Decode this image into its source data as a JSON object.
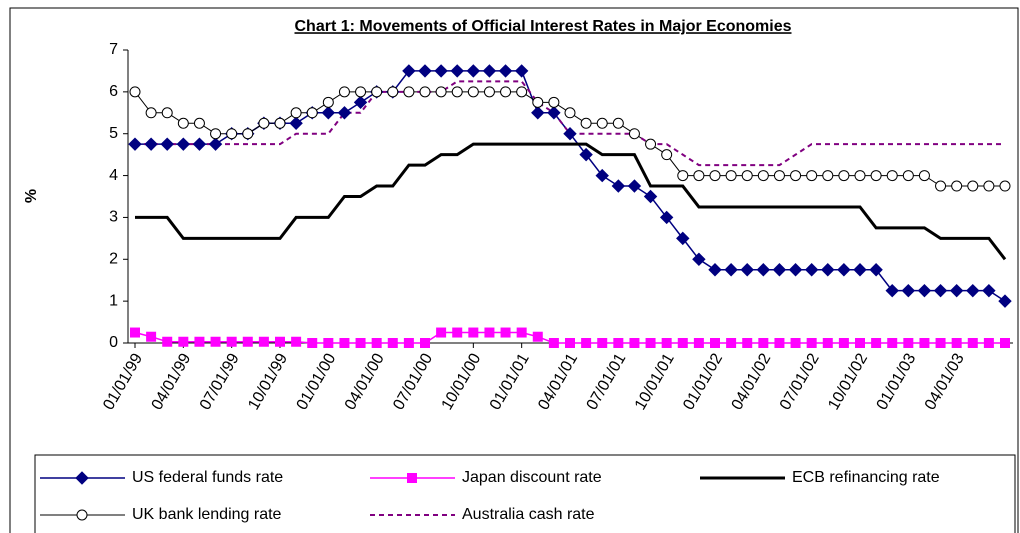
{
  "chart_data": {
    "type": "line",
    "title": "Chart 1: Movements of Official Interest Rates in Major Economies",
    "y_label": "%",
    "categories": [
      "01/01/99",
      null,
      null,
      "04/01/99",
      null,
      null,
      "07/01/99",
      null,
      null,
      "10/01/99",
      null,
      null,
      "01/01/00",
      null,
      null,
      "04/01/00",
      null,
      null,
      "07/01/00",
      null,
      null,
      "10/01/00",
      null,
      null,
      "01/01/01",
      null,
      null,
      "04/01/01",
      null,
      null,
      "07/01/01",
      null,
      null,
      "10/01/01",
      null,
      null,
      "01/01/02",
      null,
      null,
      "04/01/02",
      null,
      null,
      "07/01/02",
      null,
      null,
      "10/01/02",
      null,
      null,
      "01/01/03",
      null,
      null,
      "04/01/03",
      null,
      null,
      null
    ],
    "series": [
      {
        "name": "US federal funds rate",
        "color": "#000080",
        "marker": "diamond",
        "dash": "solid",
        "width": 1.5,
        "values": [
          4.75,
          4.75,
          4.75,
          4.75,
          4.75,
          4.75,
          5.0,
          5.0,
          5.25,
          5.25,
          5.25,
          5.5,
          5.5,
          5.5,
          5.75,
          6.0,
          6.0,
          6.5,
          6.5,
          6.5,
          6.5,
          6.5,
          6.5,
          6.5,
          6.5,
          5.5,
          5.5,
          5.0,
          4.5,
          4.0,
          3.75,
          3.75,
          3.5,
          3.0,
          2.5,
          2.0,
          1.75,
          1.75,
          1.75,
          1.75,
          1.75,
          1.75,
          1.75,
          1.75,
          1.75,
          1.75,
          1.75,
          1.25,
          1.25,
          1.25,
          1.25,
          1.25,
          1.25,
          1.25,
          1.0
        ]
      },
      {
        "name": "Japan discount rate",
        "color": "#ff00ff",
        "marker": "square",
        "dash": "solid",
        "width": 1.5,
        "values": [
          0.25,
          0.15,
          0.03,
          0.03,
          0.03,
          0.03,
          0.03,
          0.03,
          0.03,
          0.03,
          0.03,
          0,
          0,
          0,
          0,
          0,
          0,
          0,
          0,
          0.25,
          0.25,
          0.25,
          0.25,
          0.25,
          0.25,
          0.15,
          0,
          0,
          0,
          0,
          0,
          0,
          0,
          0,
          0,
          0,
          0,
          0,
          0,
          0,
          0,
          0,
          0,
          0,
          0,
          0,
          0,
          0,
          0,
          0,
          0,
          0,
          0,
          0,
          0
        ]
      },
      {
        "name": "ECB refinancing rate",
        "color": "#000000",
        "marker": "none",
        "dash": "solid",
        "width": 3,
        "values": [
          3.0,
          3.0,
          3.0,
          2.5,
          2.5,
          2.5,
          2.5,
          2.5,
          2.5,
          2.5,
          3.0,
          3.0,
          3.0,
          3.5,
          3.5,
          3.75,
          3.75,
          4.25,
          4.25,
          4.5,
          4.5,
          4.75,
          4.75,
          4.75,
          4.75,
          4.75,
          4.75,
          4.75,
          4.75,
          4.5,
          4.5,
          4.5,
          3.75,
          3.75,
          3.75,
          3.25,
          3.25,
          3.25,
          3.25,
          3.25,
          3.25,
          3.25,
          3.25,
          3.25,
          3.25,
          3.25,
          2.75,
          2.75,
          2.75,
          2.75,
          2.5,
          2.5,
          2.5,
          2.5,
          2.0
        ]
      },
      {
        "name": "UK bank lending rate",
        "color": "#000000",
        "marker": "circle",
        "dash": "solid",
        "width": 1,
        "values": [
          6.0,
          5.5,
          5.5,
          5.25,
          5.25,
          5.0,
          5.0,
          5.0,
          5.25,
          5.25,
          5.5,
          5.5,
          5.75,
          6.0,
          6.0,
          6.0,
          6.0,
          6.0,
          6.0,
          6.0,
          6.0,
          6.0,
          6.0,
          6.0,
          6.0,
          5.75,
          5.75,
          5.5,
          5.25,
          5.25,
          5.25,
          5.0,
          4.75,
          4.5,
          4.0,
          4.0,
          4.0,
          4.0,
          4.0,
          4.0,
          4.0,
          4.0,
          4.0,
          4.0,
          4.0,
          4.0,
          4.0,
          4.0,
          4.0,
          4.0,
          3.75,
          3.75,
          3.75,
          3.75,
          3.75
        ]
      },
      {
        "name": "Australia cash rate",
        "color": "#800080",
        "marker": "none",
        "dash": "dashed",
        "width": 2,
        "values": [
          4.75,
          4.75,
          4.75,
          4.75,
          4.75,
          4.75,
          4.75,
          4.75,
          4.75,
          4.75,
          5.0,
          5.0,
          5.0,
          5.5,
          5.5,
          6.0,
          6.0,
          6.0,
          6.0,
          6.0,
          6.25,
          6.25,
          6.25,
          6.25,
          6.25,
          5.75,
          5.5,
          5.0,
          5.0,
          5.0,
          5.0,
          5.0,
          4.75,
          4.75,
          4.5,
          4.25,
          4.25,
          4.25,
          4.25,
          4.25,
          4.25,
          4.5,
          4.75,
          4.75,
          4.75,
          4.75,
          4.75,
          4.75,
          4.75,
          4.75,
          4.75,
          4.75,
          4.75,
          4.75,
          4.75
        ]
      }
    ],
    "ylim": [
      0,
      7
    ],
    "yticks": [
      0,
      1,
      2,
      3,
      4,
      5,
      6,
      7
    ],
    "grid": false,
    "legend": "bottom"
  }
}
